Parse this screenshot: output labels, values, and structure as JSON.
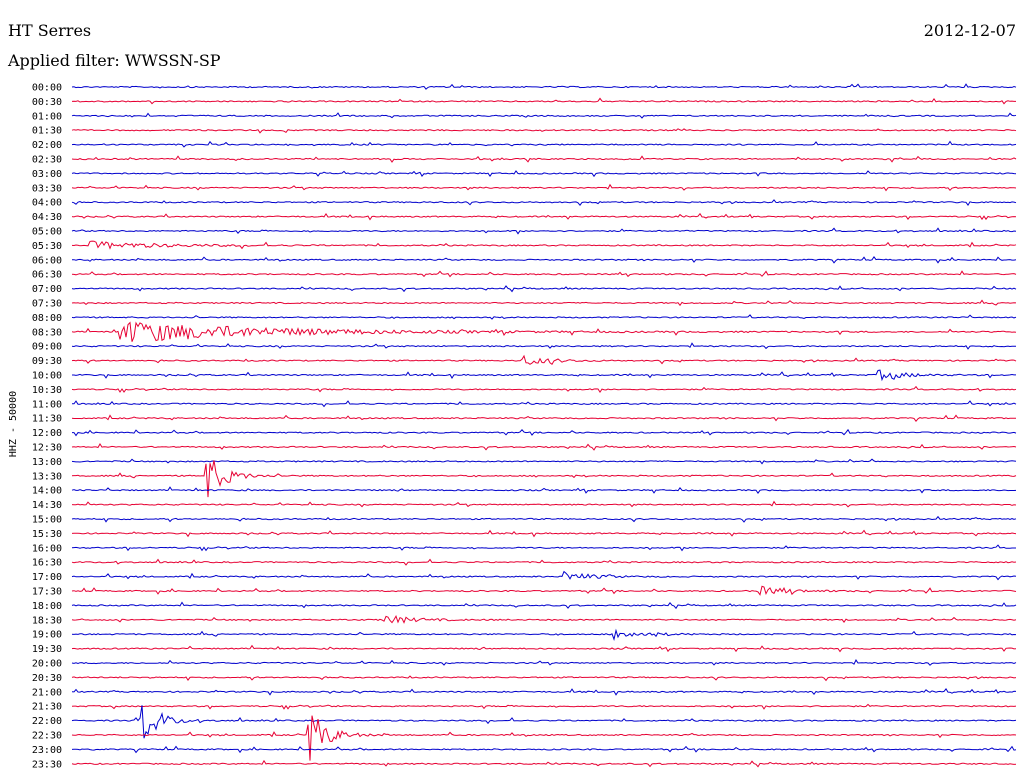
{
  "header": {
    "station": "HT Serres",
    "date": "2012-12-07",
    "filter": "Applied filter: WWSSN-SP"
  },
  "chart_data": {
    "type": "line",
    "title": "HT Serres",
    "ylabel": "HHZ - 50000",
    "colors": {
      "even_rows": "#0000cc",
      "odd_rows": "#e60033"
    },
    "rows": [
      "00:00",
      "00:30",
      "01:00",
      "01:30",
      "02:00",
      "02:30",
      "03:00",
      "03:30",
      "04:00",
      "04:30",
      "05:00",
      "05:30",
      "06:00",
      "06:30",
      "07:00",
      "07:30",
      "08:00",
      "08:30",
      "09:00",
      "09:30",
      "10:00",
      "10:30",
      "11:00",
      "11:30",
      "12:00",
      "12:30",
      "13:00",
      "13:30",
      "14:00",
      "14:30",
      "15:00",
      "15:30",
      "16:00",
      "16:30",
      "17:00",
      "17:30",
      "18:00",
      "18:30",
      "19:00",
      "19:30",
      "20:00",
      "20:30",
      "21:00",
      "21:30",
      "22:00",
      "22:30",
      "23:00",
      "23:30"
    ],
    "x_range_minutes": [
      0,
      30
    ],
    "events": [
      {
        "row": "05:30",
        "x_min": 0.5,
        "type": "noise"
      },
      {
        "row": "08:30",
        "x_min": 1.5,
        "type": "regional_quake"
      },
      {
        "row": "09:30",
        "x_min": 14.3,
        "type": "local_event"
      },
      {
        "row": "10:00",
        "x_min": 25.6,
        "type": "local_event"
      },
      {
        "row": "13:30",
        "x_min": 4.2,
        "type": "large_event"
      },
      {
        "row": "17:00",
        "x_min": 15.6,
        "type": "local_event"
      },
      {
        "row": "17:30",
        "x_min": 21.8,
        "type": "local_event"
      },
      {
        "row": "18:30",
        "x_min": 9.9,
        "type": "local_event"
      },
      {
        "row": "19:00",
        "x_min": 17.2,
        "type": "local_event"
      },
      {
        "row": "22:00",
        "x_min": 2.1,
        "type": "large_event"
      },
      {
        "row": "22:30",
        "x_min": 7.5,
        "type": "large_event"
      }
    ]
  }
}
